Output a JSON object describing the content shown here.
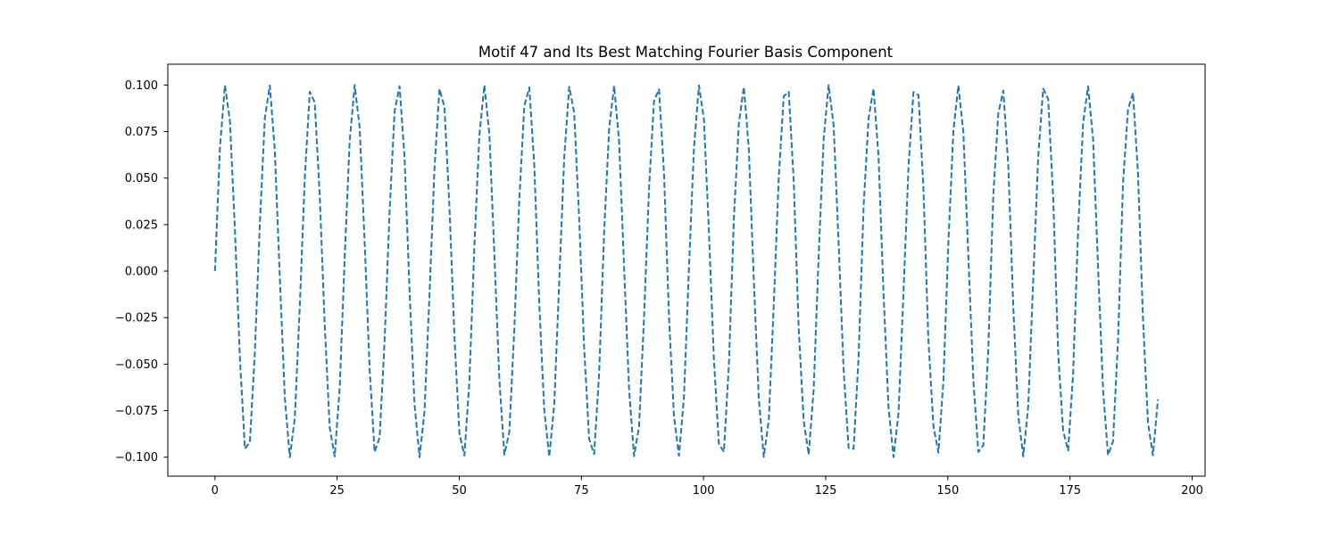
{
  "chart_data": {
    "type": "line",
    "title": "Motif 47 and Its Best Matching Fourier Basis Component",
    "xlabel": "",
    "ylabel": "",
    "xlim": [
      -9.65,
      202.65
    ],
    "ylim": [
      -0.1102,
      0.1112
    ],
    "grid": false,
    "legend": "none",
    "x_ticks": [
      0,
      25,
      50,
      75,
      100,
      125,
      150,
      175,
      200
    ],
    "x_tick_labels": [
      "0",
      "25",
      "50",
      "75",
      "100",
      "125",
      "150",
      "175",
      "200"
    ],
    "y_ticks": [
      -0.1,
      -0.075,
      -0.05,
      -0.025,
      0.0,
      0.025,
      0.05,
      0.075,
      0.1
    ],
    "y_tick_labels": [
      "−0.100",
      "−0.075",
      "−0.050",
      "−0.025",
      "0.000",
      "0.025",
      "0.050",
      "0.075",
      "0.100"
    ],
    "series": [
      {
        "line_style": "dashed",
        "color": "#1f77b4",
        "x_start": 0,
        "x_end": 193,
        "y": [
          0.0,
          0.0665,
          0.0999,
          0.0806,
          0.0223,
          -0.0468,
          -0.0955,
          -0.0919,
          -0.0435,
          0.0257,
          0.0824,
          0.0998,
          0.0647,
          -0.0035,
          -0.0681,
          -0.1,
          -0.0789,
          -0.019,
          0.0497,
          0.0964,
          0.0907,
          0.0405,
          -0.0289,
          -0.0842,
          -0.0996,
          -0.0628,
          0.007,
          0.0699,
          0.1,
          0.0772,
          0.0157,
          -0.0526,
          -0.0972,
          -0.0895,
          -0.0374,
          0.0321,
          0.0858,
          0.0994,
          0.0609,
          -0.0105,
          -0.0716,
          -0.1,
          -0.0754,
          -0.0124,
          0.0555,
          0.0979,
          0.0881,
          0.0343,
          -0.0352,
          -0.0874,
          -0.0991,
          -0.0589,
          0.014,
          0.0732,
          0.0999,
          0.0735,
          0.009,
          -0.0582,
          -0.0986,
          -0.0866,
          -0.0311,
          0.0383,
          0.0888,
          0.0987,
          0.0569,
          -0.0175,
          -0.0748,
          -0.0998,
          -0.0716,
          -0.0056,
          0.0609,
          0.0991,
          0.0851,
          0.0279,
          -0.0414,
          -0.0902,
          -0.0983,
          -0.0548,
          0.0209,
          0.0764,
          0.0996,
          0.0697,
          0.0021,
          -0.0636,
          -0.0995,
          -0.0835,
          -0.0247,
          0.0444,
          0.0915,
          0.0977,
          0.0527,
          -0.0244,
          -0.0779,
          -0.0993,
          -0.0677,
          0.0014,
          0.0661,
          0.0998,
          0.0818,
          0.0214,
          -0.0474,
          -0.0928,
          -0.0971,
          -0.0506,
          0.0278,
          0.0793,
          0.099,
          0.0656,
          -0.0049,
          -0.0686,
          -0.0999,
          -0.0801,
          -0.0181,
          0.0503,
          0.094,
          0.0963,
          0.0484,
          -0.0311,
          -0.0807,
          -0.0986,
          -0.0635,
          0.0084,
          0.071,
          0.1,
          0.0783,
          0.0148,
          -0.0531,
          -0.0951,
          -0.0955,
          -0.0462,
          0.0344,
          0.0821,
          0.0981,
          0.0614,
          -0.0118,
          -0.0733,
          -0.1,
          -0.0765,
          -0.0115,
          0.0559,
          0.0962,
          0.0946,
          0.044,
          -0.0376,
          -0.0834,
          -0.0976,
          -0.0592,
          0.0153,
          0.0755,
          0.0998,
          0.0746,
          0.0083,
          -0.0586,
          -0.0972,
          -0.0936,
          -0.0418,
          0.0408,
          0.0847,
          0.097,
          0.057,
          -0.0187,
          -0.0776,
          -0.0996,
          -0.0727,
          -0.005,
          0.0613,
          0.0981,
          0.0925,
          0.0396,
          -0.044,
          -0.0859,
          -0.0964,
          -0.0548,
          0.022,
          0.0796,
          0.0993,
          0.0708,
          0.0017,
          -0.0639,
          -0.0989,
          -0.0914,
          -0.0373,
          0.0471,
          0.087,
          0.0957,
          0.0526,
          -0.0254,
          -0.0816,
          -0.099,
          -0.0689
        ]
      }
    ]
  }
}
